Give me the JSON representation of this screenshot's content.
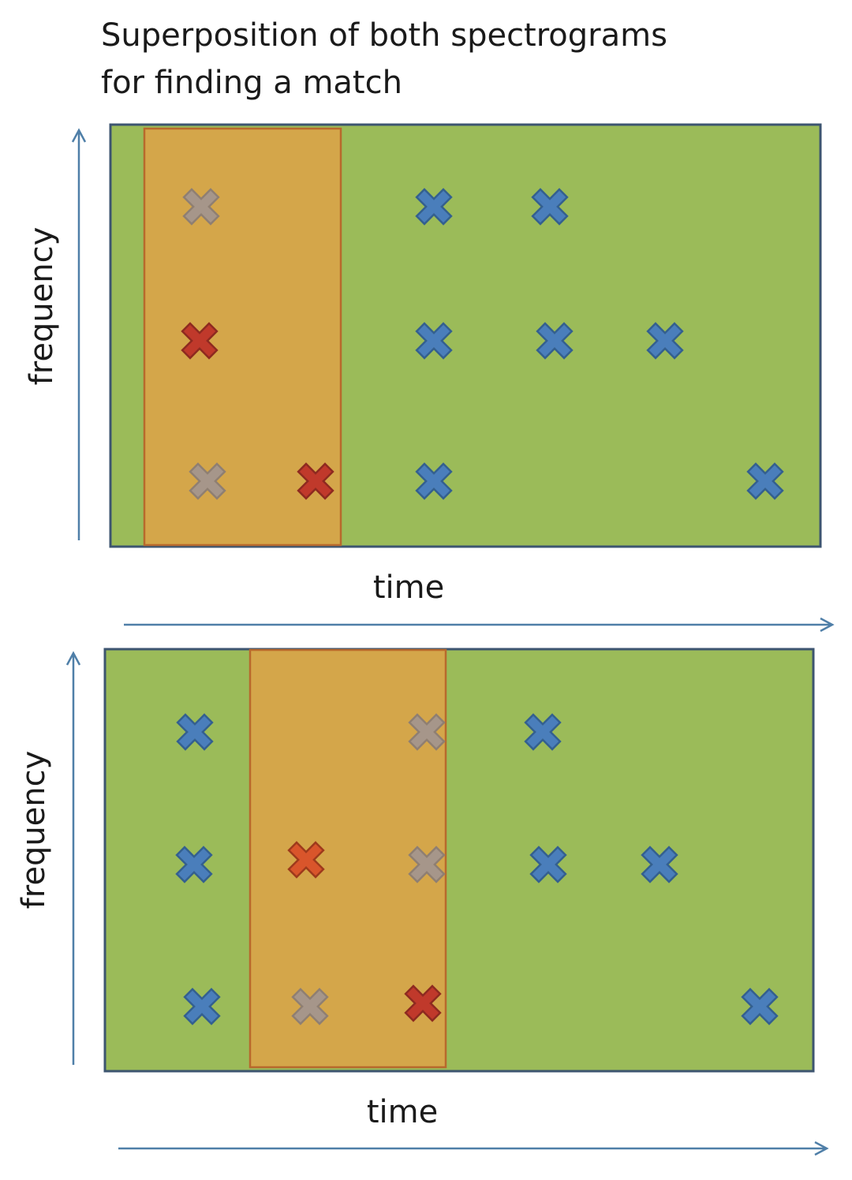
{
  "title": [
    "Superposition of both spectrograms",
    "for finding a match"
  ],
  "panels": [
    {
      "y_label": "frequency",
      "x_label": "time"
    },
    {
      "y_label": "frequency",
      "x_label": "time"
    }
  ]
}
